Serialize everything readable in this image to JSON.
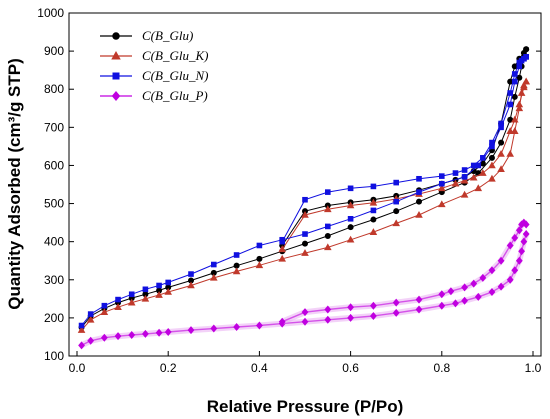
{
  "chart_data": {
    "type": "scatter",
    "xlabel": "Relative Pressure (P/Po)",
    "ylabel": "Quantity Adsorbed (cm³/g STP)",
    "xlim": [
      0.0,
      1.0
    ],
    "ylim": [
      100,
      1000
    ],
    "xticks": [
      "0.0",
      "0.2",
      "0.4",
      "0.6",
      "0.8",
      "1.0"
    ],
    "yticks": [
      "100",
      "200",
      "300",
      "400",
      "500",
      "600",
      "700",
      "800",
      "900",
      "1000"
    ],
    "grid": false,
    "legend_position": "top-left",
    "series": [
      {
        "name": "C(B_Glu)",
        "color": "#000000",
        "marker": "circle",
        "adsorption": {
          "x": [
            0.01,
            0.03,
            0.06,
            0.09,
            0.12,
            0.15,
            0.18,
            0.2,
            0.25,
            0.3,
            0.35,
            0.4,
            0.45,
            0.5,
            0.55,
            0.6,
            0.65,
            0.7,
            0.75,
            0.8,
            0.85,
            0.88,
            0.91,
            0.93,
            0.95,
            0.96,
            0.97,
            0.975,
            0.98,
            0.985
          ],
          "y": [
            175,
            205,
            225,
            240,
            252,
            262,
            272,
            280,
            298,
            318,
            337,
            355,
            375,
            395,
            415,
            438,
            458,
            480,
            505,
            530,
            555,
            580,
            620,
            660,
            720,
            780,
            830,
            860,
            885,
            905
          ]
        },
        "desorption": {
          "x": [
            0.985,
            0.98,
            0.97,
            0.96,
            0.95,
            0.93,
            0.91,
            0.89,
            0.87,
            0.85,
            0.83,
            0.8,
            0.75,
            0.7,
            0.65,
            0.6,
            0.55,
            0.5,
            0.45
          ],
          "y": [
            905,
            895,
            880,
            860,
            820,
            710,
            640,
            605,
            585,
            570,
            562,
            552,
            535,
            520,
            510,
            503,
            495,
            480,
            390
          ]
        }
      },
      {
        "name": "C(B_Glu_K)",
        "color": "#c0392b",
        "marker": "triangle",
        "adsorption": {
          "x": [
            0.01,
            0.03,
            0.06,
            0.09,
            0.12,
            0.15,
            0.18,
            0.2,
            0.25,
            0.3,
            0.35,
            0.4,
            0.45,
            0.5,
            0.55,
            0.6,
            0.65,
            0.7,
            0.75,
            0.8,
            0.85,
            0.88,
            0.91,
            0.93,
            0.95,
            0.96,
            0.97,
            0.975,
            0.98,
            0.985
          ],
          "y": [
            168,
            195,
            215,
            228,
            240,
            250,
            260,
            268,
            285,
            305,
            322,
            338,
            355,
            370,
            385,
            405,
            425,
            448,
            470,
            498,
            523,
            540,
            565,
            590,
            630,
            690,
            750,
            790,
            810,
            820
          ]
        },
        "desorption": {
          "x": [
            0.985,
            0.98,
            0.97,
            0.96,
            0.95,
            0.93,
            0.91,
            0.89,
            0.87,
            0.85,
            0.83,
            0.8,
            0.75,
            0.7,
            0.65,
            0.6,
            0.55,
            0.5,
            0.45
          ],
          "y": [
            820,
            805,
            760,
            720,
            690,
            630,
            600,
            580,
            568,
            560,
            552,
            540,
            525,
            512,
            502,
            495,
            485,
            470,
            380
          ]
        }
      },
      {
        "name": "C(B_Glu_N)",
        "color": "#1010e0",
        "marker": "square",
        "adsorption": {
          "x": [
            0.01,
            0.03,
            0.06,
            0.09,
            0.12,
            0.15,
            0.18,
            0.2,
            0.25,
            0.3,
            0.35,
            0.4,
            0.45,
            0.5,
            0.55,
            0.6,
            0.65,
            0.7,
            0.75,
            0.8,
            0.85,
            0.88,
            0.91,
            0.93,
            0.95,
            0.96,
            0.97,
            0.975,
            0.98,
            0.985
          ],
          "y": [
            180,
            210,
            232,
            248,
            262,
            275,
            285,
            293,
            315,
            340,
            365,
            390,
            405,
            420,
            440,
            460,
            482,
            505,
            530,
            552,
            570,
            600,
            650,
            700,
            760,
            820,
            860,
            875,
            880,
            885
          ]
        },
        "desorption": {
          "x": [
            0.985,
            0.98,
            0.97,
            0.96,
            0.95,
            0.93,
            0.91,
            0.89,
            0.87,
            0.85,
            0.83,
            0.8,
            0.75,
            0.7,
            0.65,
            0.6,
            0.55,
            0.5,
            0.45
          ],
          "y": [
            885,
            880,
            870,
            840,
            790,
            710,
            660,
            620,
            600,
            588,
            580,
            572,
            565,
            555,
            545,
            540,
            530,
            510,
            400
          ]
        }
      },
      {
        "name": "C(B_Glu_P)",
        "color": "#c000e0",
        "marker": "diamond",
        "adsorption": {
          "x": [
            0.01,
            0.03,
            0.06,
            0.09,
            0.12,
            0.15,
            0.18,
            0.2,
            0.25,
            0.3,
            0.35,
            0.4,
            0.45,
            0.5,
            0.55,
            0.6,
            0.65,
            0.7,
            0.75,
            0.8,
            0.83,
            0.85,
            0.88,
            0.91,
            0.93,
            0.95,
            0.96,
            0.97,
            0.975,
            0.98,
            0.985
          ],
          "y": [
            128,
            140,
            148,
            152,
            155,
            158,
            161,
            163,
            168,
            172,
            176,
            180,
            185,
            190,
            195,
            200,
            205,
            213,
            222,
            232,
            238,
            245,
            255,
            268,
            282,
            300,
            325,
            350,
            375,
            400,
            420
          ]
        },
        "desorption": {
          "x": [
            0.985,
            0.98,
            0.975,
            0.97,
            0.96,
            0.95,
            0.93,
            0.91,
            0.89,
            0.87,
            0.85,
            0.82,
            0.8,
            0.75,
            0.7,
            0.65,
            0.6,
            0.55,
            0.5,
            0.45
          ],
          "y": [
            445,
            450,
            445,
            430,
            410,
            390,
            350,
            325,
            305,
            290,
            280,
            270,
            262,
            248,
            240,
            232,
            228,
            222,
            215,
            190
          ]
        }
      }
    ]
  }
}
